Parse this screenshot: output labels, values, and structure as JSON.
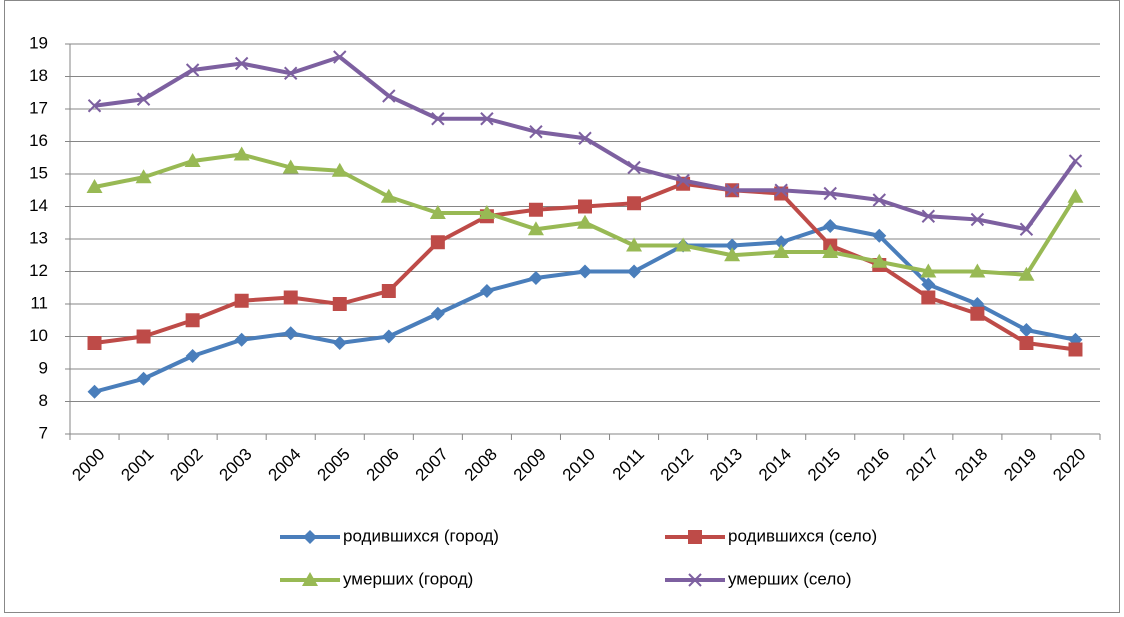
{
  "chart_data": {
    "type": "line",
    "categories": [
      "2000",
      "2001",
      "2002",
      "2003",
      "2004",
      "2005",
      "2006",
      "2007",
      "2008",
      "2009",
      "2010",
      "2011",
      "2012",
      "2013",
      "2014",
      "2015",
      "2016",
      "2017",
      "2018",
      "2019",
      "2020"
    ],
    "series": [
      {
        "name": "родившихся (город)",
        "color": "#4a7ebb",
        "marker": "diamond",
        "values": [
          8.3,
          8.7,
          9.4,
          9.9,
          10.1,
          9.8,
          10.0,
          10.7,
          11.4,
          11.8,
          12.0,
          12.0,
          12.8,
          12.8,
          12.9,
          13.4,
          13.1,
          11.6,
          11.0,
          10.2,
          9.9
        ]
      },
      {
        "name": "родившихся (село)",
        "color": "#be4b48",
        "marker": "square",
        "values": [
          9.8,
          10.0,
          10.5,
          11.1,
          11.2,
          11.0,
          11.4,
          12.9,
          13.7,
          13.9,
          14.0,
          14.1,
          14.7,
          14.5,
          14.4,
          12.8,
          12.2,
          11.2,
          10.7,
          9.8,
          9.6
        ]
      },
      {
        "name": "умерших (город)",
        "color": "#98b954",
        "marker": "triangle",
        "values": [
          14.6,
          14.9,
          15.4,
          15.6,
          15.2,
          15.1,
          14.3,
          13.8,
          13.8,
          13.3,
          13.5,
          12.8,
          12.8,
          12.5,
          12.6,
          12.6,
          12.3,
          12.0,
          12.0,
          11.9,
          14.3
        ]
      },
      {
        "name": "умерших (село)",
        "color": "#7d60a0",
        "marker": "x",
        "values": [
          17.1,
          17.3,
          18.2,
          18.4,
          18.1,
          18.6,
          17.4,
          16.7,
          16.7,
          16.3,
          16.1,
          15.2,
          14.8,
          14.5,
          14.5,
          14.4,
          14.2,
          13.7,
          13.6,
          13.3,
          15.4
        ]
      }
    ],
    "ylim": [
      7,
      19
    ],
    "yticks": [
      7,
      8,
      9,
      10,
      11,
      12,
      13,
      14,
      15,
      16,
      17,
      18,
      19
    ],
    "grid": true,
    "legend": "bottom"
  }
}
